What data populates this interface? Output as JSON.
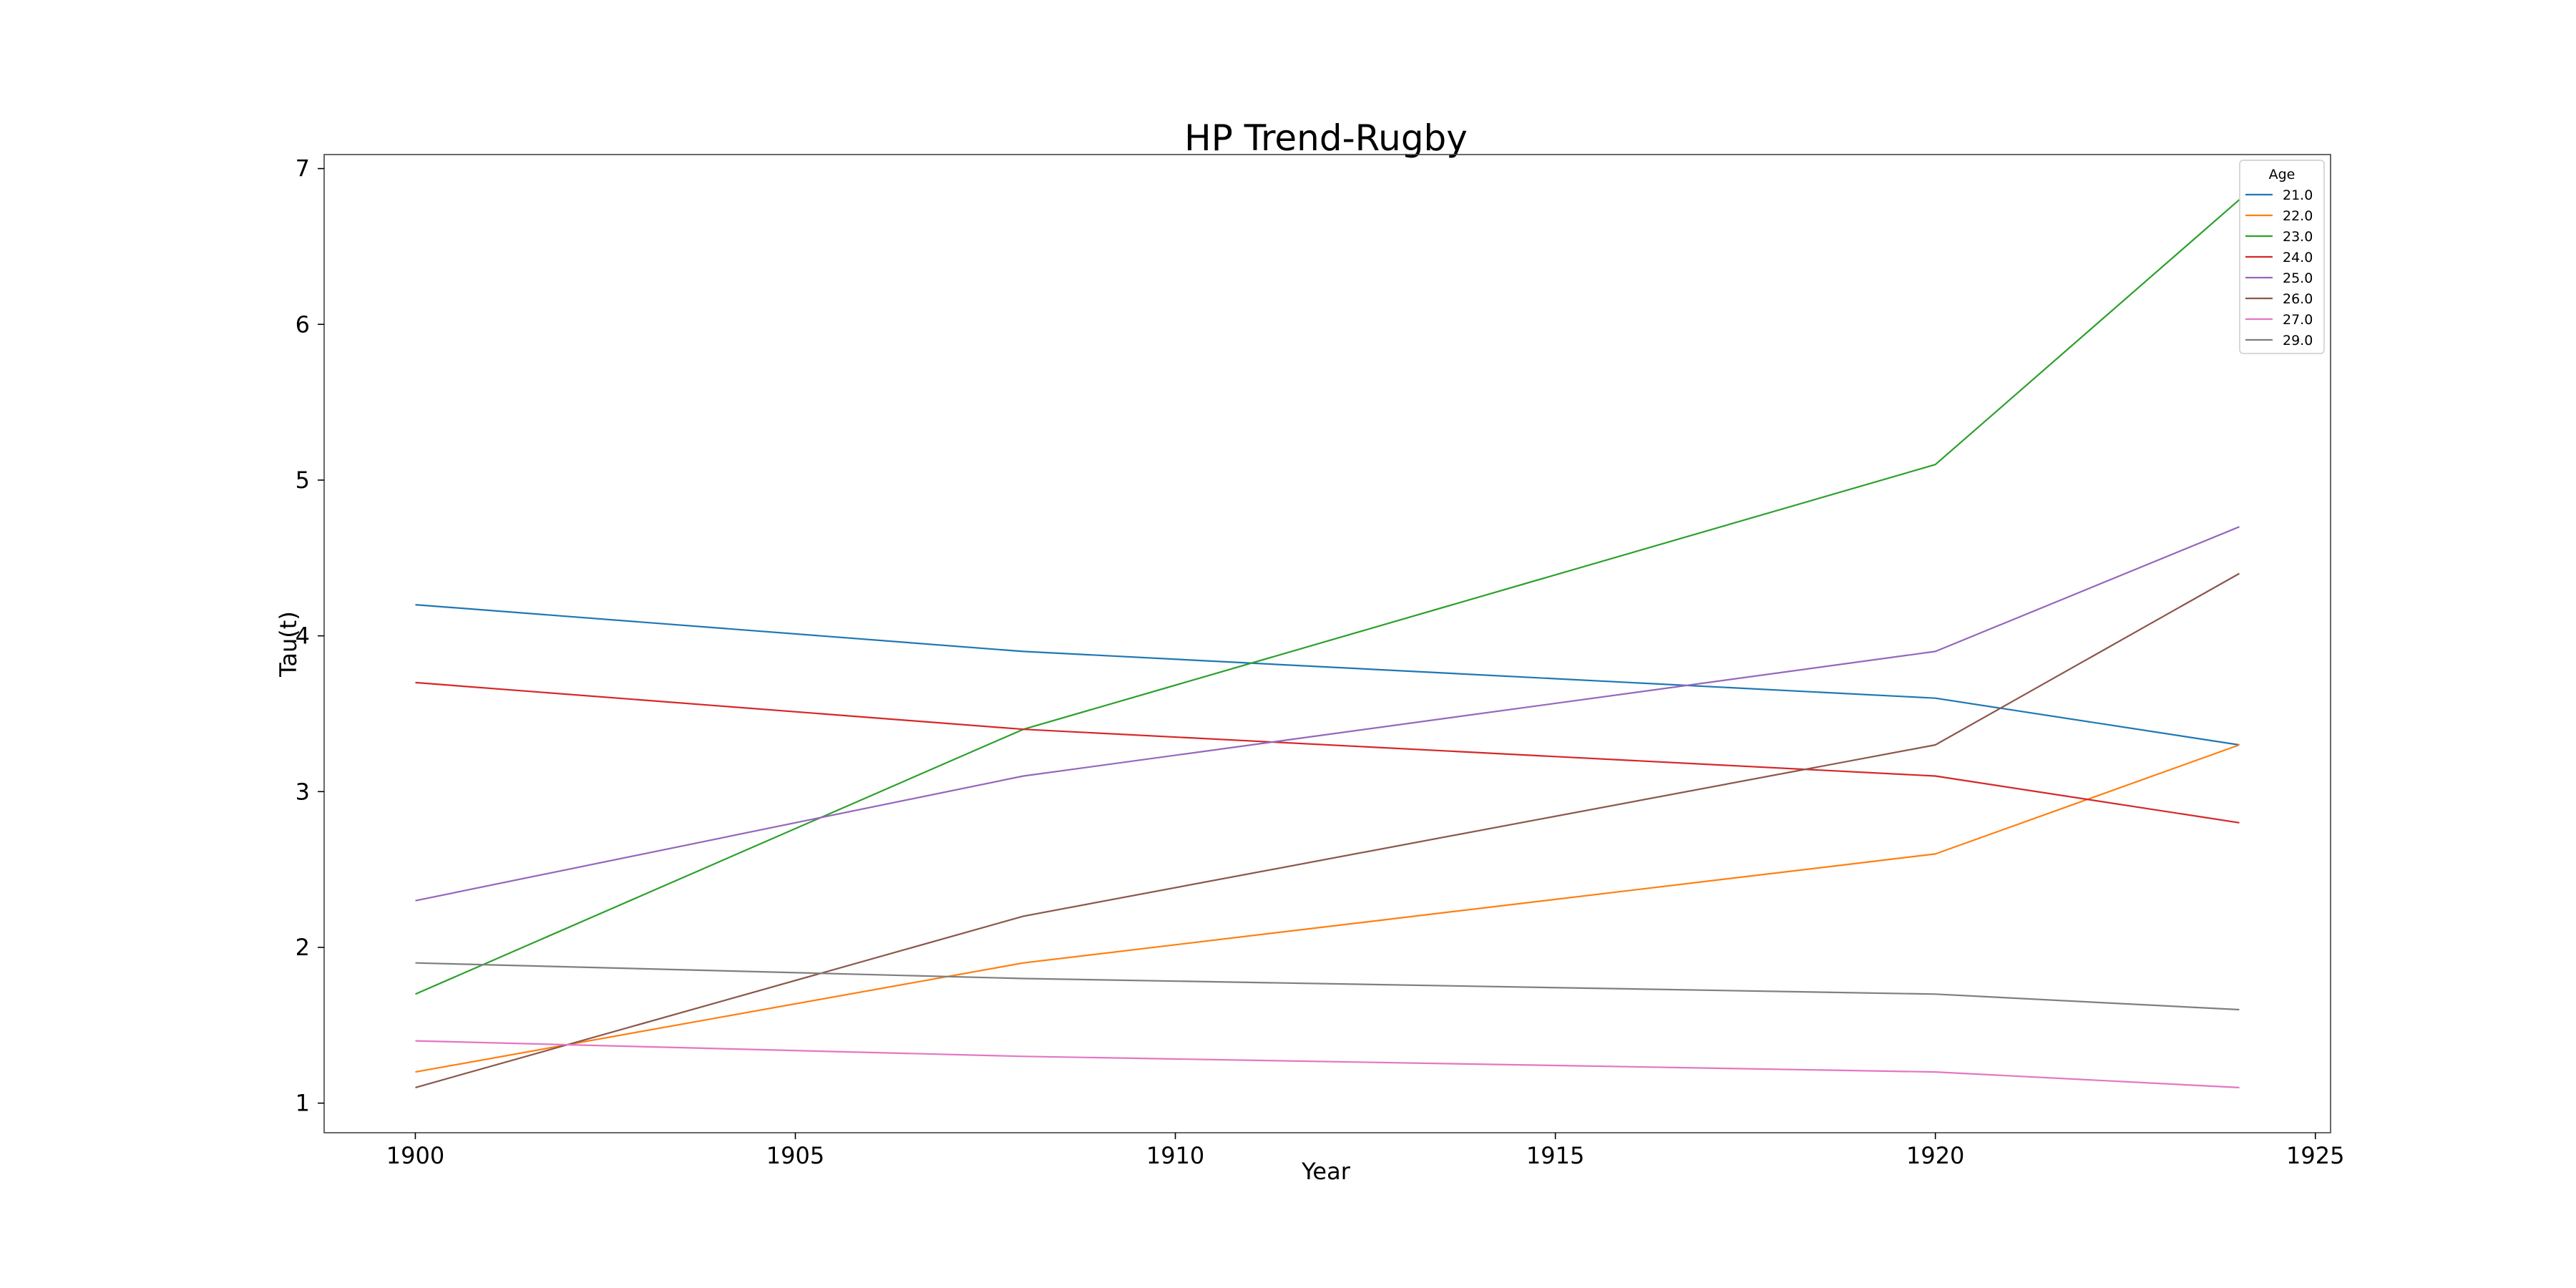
{
  "chart_data": {
    "type": "line",
    "title": "HP Trend-Rugby",
    "xlabel": "Year",
    "ylabel": "Tau(t)",
    "xlim": [
      1898.8,
      1925.2
    ],
    "ylim": [
      0.81,
      7.09
    ],
    "x_ticks": [
      "1900",
      "1905",
      "1910",
      "1915",
      "1920",
      "1925"
    ],
    "y_ticks": [
      "1",
      "2",
      "3",
      "4",
      "5",
      "6",
      "7"
    ],
    "grid": false,
    "legend": {
      "title": "Age",
      "position": "top-right"
    },
    "x": [
      1900,
      1908,
      1920,
      1924
    ],
    "series": [
      {
        "name": "21.0",
        "color": "#1f77b4",
        "values": [
          4.2,
          3.9,
          3.6,
          3.3
        ]
      },
      {
        "name": "22.0",
        "color": "#ff7f0e",
        "values": [
          1.2,
          1.9,
          2.6,
          3.3
        ]
      },
      {
        "name": "23.0",
        "color": "#2ca02c",
        "values": [
          1.7,
          3.4,
          5.1,
          6.8
        ]
      },
      {
        "name": "24.0",
        "color": "#d62728",
        "values": [
          3.7,
          3.4,
          3.1,
          2.8
        ]
      },
      {
        "name": "25.0",
        "color": "#9467bd",
        "values": [
          2.3,
          3.1,
          3.9,
          4.7
        ]
      },
      {
        "name": "26.0",
        "color": "#8c564b",
        "values": [
          1.1,
          2.2,
          3.3,
          4.4
        ]
      },
      {
        "name": "27.0",
        "color": "#e377c2",
        "values": [
          1.4,
          1.3,
          1.2,
          1.1
        ]
      },
      {
        "name": "29.0",
        "color": "#7f7f7f",
        "values": [
          1.9,
          1.8,
          1.7,
          1.6
        ]
      }
    ]
  }
}
